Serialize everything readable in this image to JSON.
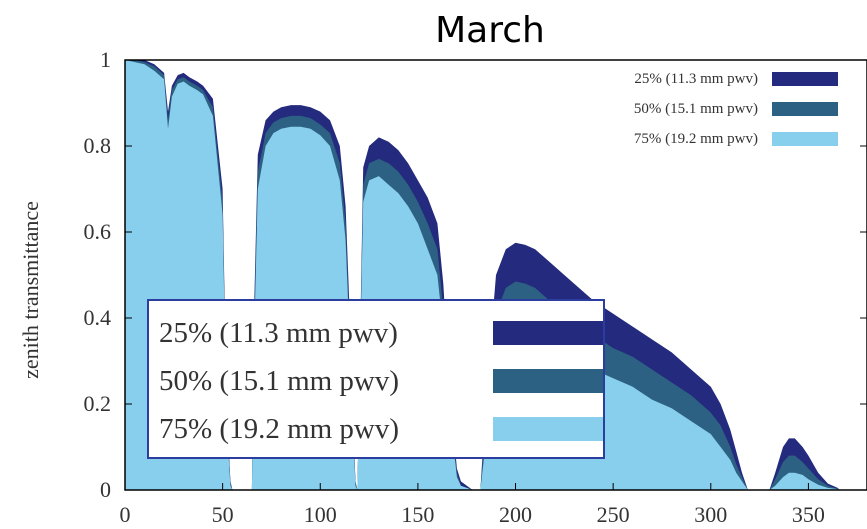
{
  "chart_data": {
    "type": "area",
    "title": "March",
    "xlabel": "",
    "ylabel": "zenith transmittance",
    "xlim": [
      0,
      380
    ],
    "ylim": [
      0,
      1
    ],
    "x_ticks": [
      "0",
      "50",
      "100",
      "150",
      "200",
      "250",
      "300",
      "350"
    ],
    "y_ticks": [
      "0",
      "0.2",
      "0.4",
      "0.6",
      "0.8",
      "1"
    ],
    "grid": false,
    "legend_position": "top-right",
    "colors": {
      "p25": "#242a7d",
      "p50": "#2d6183",
      "p75": "#87cfec"
    },
    "series": [
      {
        "name": "25% (11.3 mm pwv)",
        "x": [
          0,
          5,
          10,
          15,
          20,
          22,
          24,
          27,
          30,
          33,
          37,
          40,
          45,
          50,
          52,
          54,
          55,
          65,
          66,
          68,
          72,
          76,
          80,
          85,
          90,
          95,
          100,
          105,
          110,
          113,
          116,
          118,
          119,
          122,
          125,
          130,
          135,
          140,
          145,
          150,
          155,
          160,
          163,
          166,
          170,
          172,
          178,
          182,
          185,
          190,
          195,
          200,
          205,
          210,
          215,
          220,
          225,
          230,
          240,
          250,
          260,
          270,
          280,
          290,
          300,
          305,
          310,
          313,
          316,
          319,
          320,
          325,
          330,
          333,
          337,
          340,
          343,
          347,
          350,
          355,
          360,
          365,
          366,
          380
        ],
        "values": [
          1.0,
          1.0,
          1.0,
          0.99,
          0.97,
          0.88,
          0.94,
          0.965,
          0.97,
          0.96,
          0.95,
          0.94,
          0.91,
          0.7,
          0.2,
          0.02,
          0.0,
          0.0,
          0.4,
          0.78,
          0.86,
          0.88,
          0.89,
          0.895,
          0.895,
          0.89,
          0.88,
          0.86,
          0.8,
          0.66,
          0.3,
          0.02,
          0.0,
          0.75,
          0.8,
          0.82,
          0.81,
          0.79,
          0.76,
          0.72,
          0.68,
          0.62,
          0.48,
          0.25,
          0.05,
          0.02,
          0.0,
          0.0,
          0.22,
          0.5,
          0.56,
          0.575,
          0.57,
          0.56,
          0.54,
          0.52,
          0.5,
          0.48,
          0.44,
          0.41,
          0.38,
          0.35,
          0.32,
          0.28,
          0.24,
          0.2,
          0.14,
          0.09,
          0.04,
          0.0,
          0.0,
          0.0,
          0.0,
          0.04,
          0.1,
          0.12,
          0.12,
          0.1,
          0.08,
          0.04,
          0.015,
          0.005,
          0.0,
          0.0
        ]
      },
      {
        "name": "50% (15.1 mm pwv)",
        "x": [
          0,
          5,
          10,
          15,
          20,
          22,
          24,
          27,
          30,
          33,
          37,
          40,
          45,
          50,
          52,
          54,
          55,
          65,
          66,
          68,
          72,
          76,
          80,
          85,
          90,
          95,
          100,
          105,
          110,
          113,
          116,
          118,
          119,
          122,
          125,
          130,
          135,
          140,
          145,
          150,
          155,
          160,
          163,
          166,
          170,
          172,
          178,
          182,
          185,
          190,
          195,
          200,
          205,
          210,
          215,
          220,
          225,
          230,
          240,
          250,
          260,
          270,
          280,
          290,
          300,
          305,
          310,
          313,
          316,
          319,
          320,
          325,
          330,
          333,
          337,
          340,
          343,
          347,
          350,
          355,
          360,
          365,
          366,
          380
        ],
        "values": [
          1.0,
          1.0,
          0.995,
          0.985,
          0.965,
          0.86,
          0.93,
          0.955,
          0.96,
          0.95,
          0.94,
          0.93,
          0.89,
          0.67,
          0.18,
          0.02,
          0.0,
          0.0,
          0.36,
          0.74,
          0.83,
          0.855,
          0.865,
          0.87,
          0.87,
          0.865,
          0.85,
          0.83,
          0.76,
          0.62,
          0.27,
          0.02,
          0.0,
          0.71,
          0.76,
          0.77,
          0.76,
          0.74,
          0.71,
          0.67,
          0.62,
          0.56,
          0.42,
          0.22,
          0.04,
          0.01,
          0.0,
          0.0,
          0.17,
          0.41,
          0.47,
          0.485,
          0.48,
          0.47,
          0.45,
          0.43,
          0.41,
          0.39,
          0.36,
          0.33,
          0.31,
          0.28,
          0.25,
          0.22,
          0.18,
          0.15,
          0.1,
          0.06,
          0.03,
          0.0,
          0.0,
          0.0,
          0.0,
          0.025,
          0.065,
          0.08,
          0.08,
          0.065,
          0.05,
          0.025,
          0.01,
          0.003,
          0.0,
          0.0
        ]
      },
      {
        "name": "75% (19.2 mm pwv)",
        "x": [
          0,
          5,
          10,
          15,
          20,
          22,
          24,
          27,
          30,
          33,
          37,
          40,
          45,
          50,
          52,
          54,
          55,
          65,
          66,
          68,
          72,
          76,
          80,
          85,
          90,
          95,
          100,
          105,
          110,
          113,
          116,
          118,
          119,
          122,
          125,
          130,
          135,
          140,
          145,
          150,
          155,
          160,
          163,
          166,
          170,
          172,
          178,
          182,
          185,
          190,
          195,
          200,
          205,
          210,
          215,
          220,
          225,
          230,
          240,
          250,
          260,
          270,
          280,
          290,
          300,
          305,
          310,
          313,
          316,
          319,
          320,
          325,
          330,
          333,
          337,
          340,
          343,
          347,
          350,
          355,
          360,
          365,
          366,
          380
        ],
        "values": [
          1.0,
          0.995,
          0.99,
          0.975,
          0.955,
          0.84,
          0.915,
          0.945,
          0.95,
          0.94,
          0.93,
          0.92,
          0.87,
          0.64,
          0.16,
          0.01,
          0.0,
          0.0,
          0.32,
          0.7,
          0.8,
          0.83,
          0.84,
          0.845,
          0.845,
          0.84,
          0.825,
          0.8,
          0.72,
          0.58,
          0.24,
          0.01,
          0.0,
          0.67,
          0.72,
          0.73,
          0.71,
          0.69,
          0.66,
          0.62,
          0.56,
          0.5,
          0.37,
          0.19,
          0.03,
          0.01,
          0.0,
          0.0,
          0.12,
          0.33,
          0.4,
          0.41,
          0.405,
          0.39,
          0.37,
          0.35,
          0.33,
          0.31,
          0.28,
          0.26,
          0.24,
          0.21,
          0.19,
          0.16,
          0.13,
          0.1,
          0.07,
          0.04,
          0.02,
          0.0,
          0.0,
          0.0,
          0.0,
          0.01,
          0.03,
          0.04,
          0.04,
          0.035,
          0.025,
          0.012,
          0.005,
          0.002,
          0.0,
          0.0
        ]
      }
    ]
  }
}
